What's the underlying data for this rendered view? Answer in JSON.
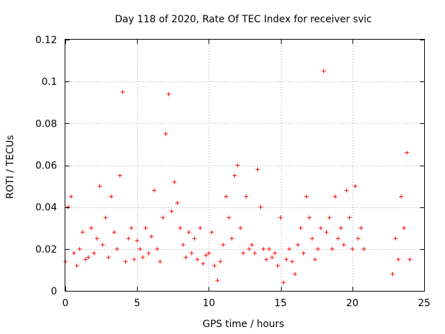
{
  "chart_data": {
    "type": "scatter",
    "title": "Day 118 of 2020, Rate Of TEC Index for receiver svic",
    "xlabel": "GPS time / hours",
    "ylabel": "ROTI / TECUs",
    "xlim": [
      0,
      25
    ],
    "ylim": [
      0,
      0.12
    ],
    "xticks": [
      0,
      5,
      10,
      15,
      20,
      25
    ],
    "xtick_labels": [
      "0",
      "5",
      "10",
      "15",
      "20",
      "25"
    ],
    "yticks": [
      0,
      0.02,
      0.04,
      0.06,
      0.08,
      0.1,
      0.12
    ],
    "ytick_labels": [
      "0",
      "0.02",
      "0.04",
      "0.06",
      "0.08",
      "0.1",
      "0.12"
    ],
    "grid": true,
    "marker": "plus",
    "color": "#ff0000",
    "series": [
      {
        "x": [
          0.0,
          0.2,
          0.4,
          0.6,
          0.8,
          1.0,
          1.2,
          1.4,
          1.6,
          1.8,
          2.0,
          2.2,
          2.4,
          2.6,
          2.8,
          3.0,
          3.2,
          3.4,
          3.6,
          3.8,
          4.0,
          4.2,
          4.4,
          4.6,
          4.8,
          5.0,
          5.2,
          5.4,
          5.6,
          5.8,
          6.0,
          6.2,
          6.4,
          6.6,
          6.8,
          7.0,
          7.2,
          7.4,
          7.6,
          7.8,
          8.0,
          8.2,
          8.4,
          8.6,
          8.8,
          9.0,
          9.2,
          9.4,
          9.6,
          9.8,
          10.0,
          10.2,
          10.4,
          10.6,
          10.8,
          11.0,
          11.2,
          11.4,
          11.6,
          11.8,
          12.0,
          12.2,
          12.4,
          12.6,
          12.8,
          13.0,
          13.2,
          13.4,
          13.6,
          13.8,
          14.0,
          14.2,
          14.4,
          14.6,
          14.8,
          15.0,
          15.2,
          15.4,
          15.6,
          15.8,
          16.0,
          16.2,
          16.4,
          16.6,
          16.8,
          17.0,
          17.2,
          17.4,
          17.6,
          17.8,
          18.0,
          18.2,
          18.4,
          18.6,
          18.8,
          19.0,
          19.2,
          19.4,
          19.6,
          19.8,
          20.0,
          20.2,
          20.4,
          20.6,
          20.8,
          22.8,
          23.0,
          23.2,
          23.4,
          23.6,
          23.8,
          24.0
        ],
        "y": [
          0.014,
          0.04,
          0.045,
          0.018,
          0.012,
          0.02,
          0.028,
          0.015,
          0.016,
          0.03,
          0.018,
          0.025,
          0.05,
          0.022,
          0.035,
          0.016,
          0.045,
          0.028,
          0.02,
          0.055,
          0.095,
          0.014,
          0.025,
          0.03,
          0.015,
          0.024,
          0.02,
          0.016,
          0.03,
          0.018,
          0.026,
          0.048,
          0.02,
          0.014,
          0.035,
          0.075,
          0.094,
          0.038,
          0.052,
          0.042,
          0.03,
          0.022,
          0.016,
          0.028,
          0.018,
          0.025,
          0.015,
          0.03,
          0.013,
          0.017,
          0.018,
          0.028,
          0.012,
          0.005,
          0.014,
          0.022,
          0.045,
          0.035,
          0.025,
          0.055,
          0.06,
          0.03,
          0.018,
          0.045,
          0.02,
          0.022,
          0.018,
          0.058,
          0.04,
          0.02,
          0.015,
          0.02,
          0.016,
          0.018,
          0.012,
          0.035,
          0.004,
          0.015,
          0.02,
          0.014,
          0.008,
          0.022,
          0.03,
          0.018,
          0.045,
          0.035,
          0.025,
          0.015,
          0.02,
          0.03,
          0.105,
          0.028,
          0.035,
          0.02,
          0.045,
          0.025,
          0.03,
          0.022,
          0.048,
          0.035,
          0.02,
          0.05,
          0.025,
          0.03,
          0.02,
          0.008,
          0.025,
          0.015,
          0.045,
          0.03,
          0.066,
          0.015
        ]
      }
    ]
  }
}
